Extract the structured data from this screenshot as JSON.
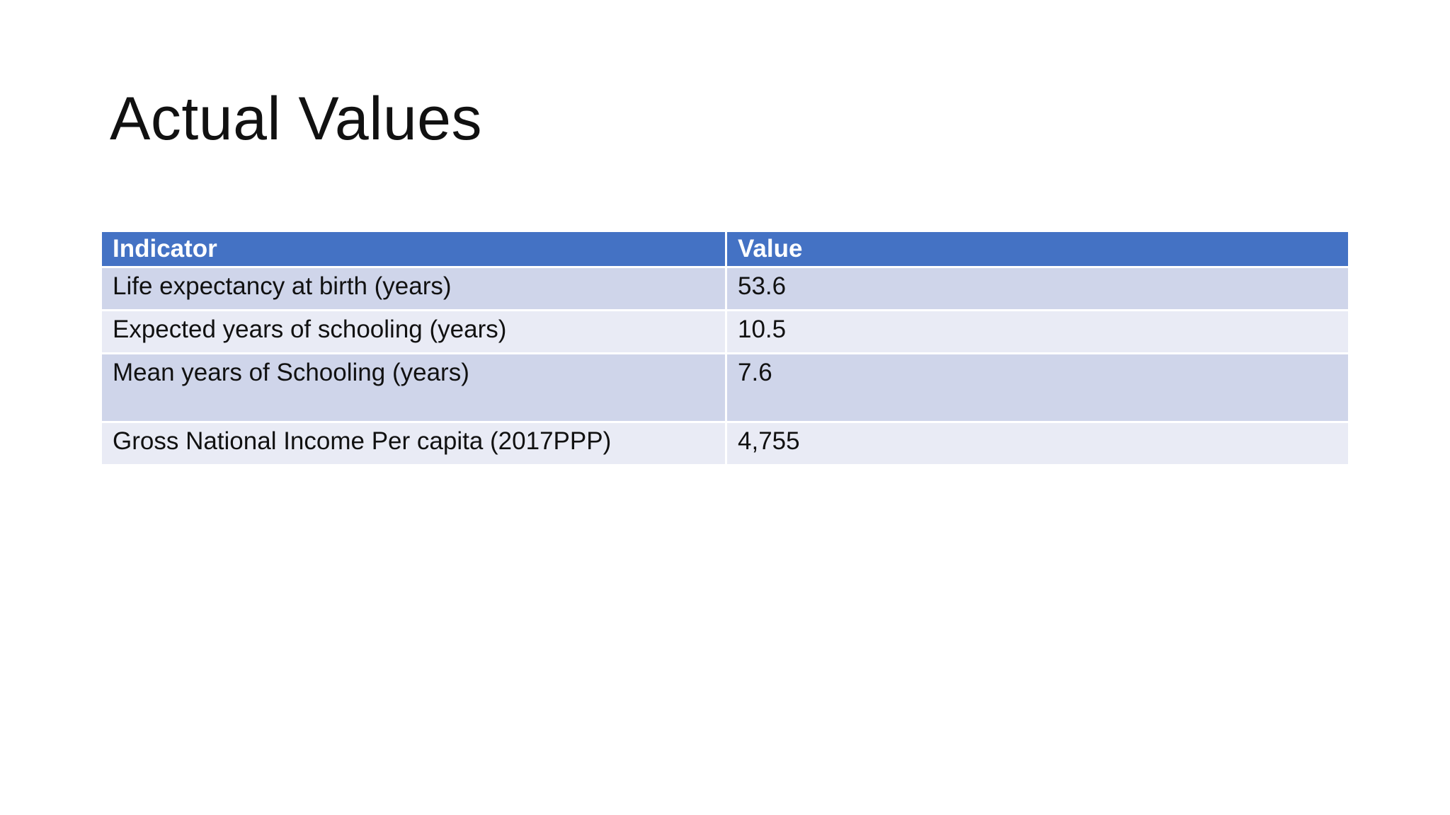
{
  "header": {
    "title": "Actual Values"
  },
  "table": {
    "columns": [
      "Indicator",
      "Value"
    ],
    "rows": [
      [
        "Life expectancy at birth (years)",
        "53.6"
      ],
      [
        "Expected years of schooling (years)",
        "10.5"
      ],
      [
        "Mean years of Schooling (years)",
        "7.6"
      ],
      [
        "Gross National Income Per capita (2017PPP)",
        "4,755"
      ]
    ]
  }
}
